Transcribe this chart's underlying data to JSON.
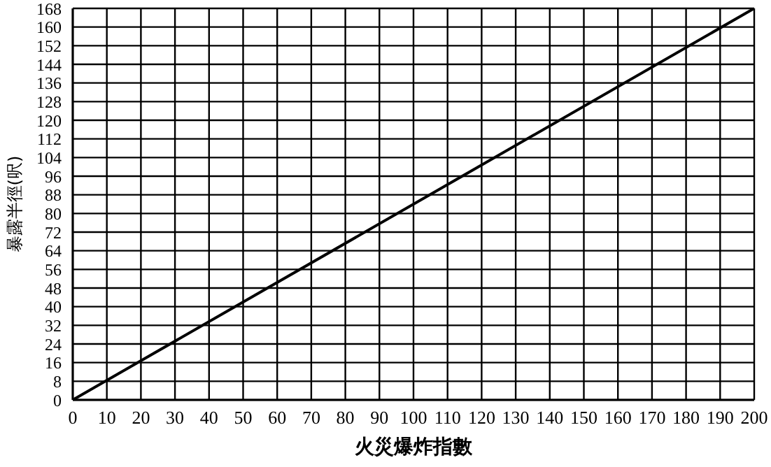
{
  "chart_data": {
    "type": "line",
    "xlabel": "火災爆炸指數",
    "ylabel": "暴露半徑(呎)",
    "x": [
      0,
      200
    ],
    "series": [
      {
        "color": "#000000",
        "values": [
          0,
          168
        ]
      }
    ],
    "xlim": [
      0,
      200
    ],
    "xticks": [
      0,
      10,
      20,
      30,
      40,
      50,
      60,
      70,
      80,
      90,
      100,
      110,
      120,
      130,
      140,
      150,
      160,
      170,
      180,
      190,
      200
    ],
    "ylim": [
      0,
      168
    ],
    "yticks": [
      0,
      8,
      16,
      24,
      32,
      40,
      48,
      56,
      64,
      72,
      80,
      88,
      96,
      104,
      112,
      120,
      128,
      136,
      144,
      152,
      160,
      168
    ],
    "grid": true,
    "marker": "none",
    "line_style": "solid"
  }
}
